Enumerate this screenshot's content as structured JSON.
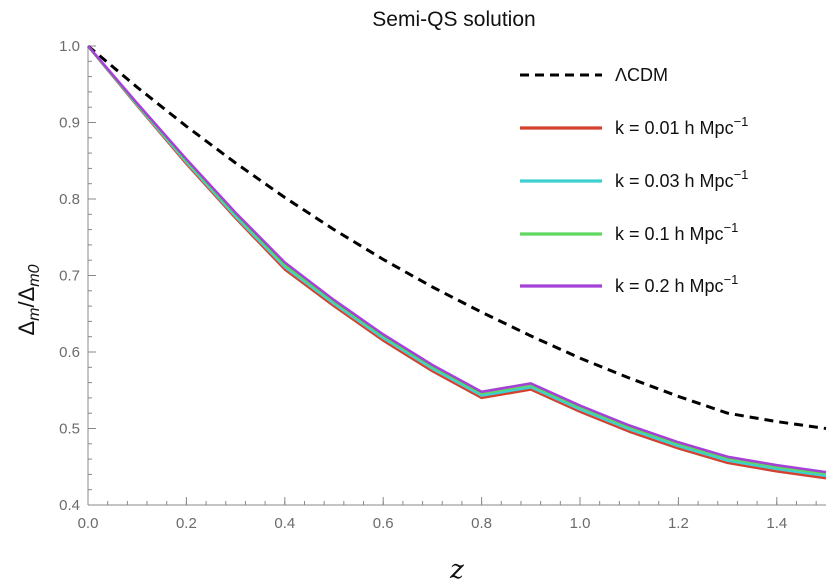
{
  "chart_data": {
    "type": "line",
    "title": "Semi-QS solution",
    "xlabel": "z",
    "ylabel": "Δm/Δm0",
    "ylabel_parts": {
      "main": "Δ",
      "sub1": "m",
      "slash": "/Δ",
      "sub2": "m0"
    },
    "xlim": [
      0.0,
      1.5
    ],
    "ylim": [
      0.4,
      1.0
    ],
    "x_ticks": [
      "0.0",
      "0.2",
      "0.4",
      "0.6",
      "0.8",
      "1.0",
      "1.2",
      "1.4"
    ],
    "y_ticks": [
      "0.4",
      "0.5",
      "0.6",
      "0.7",
      "0.8",
      "0.9",
      "1.0"
    ],
    "grid": false,
    "legend_position": "top-right",
    "x": [
      0.0,
      0.1,
      0.2,
      0.3,
      0.4,
      0.5,
      0.6,
      0.7,
      0.8,
      0.9,
      1.0,
      1.1,
      1.2,
      1.3,
      1.4,
      1.5
    ],
    "series": [
      {
        "name": "ΛCDM",
        "color": "#000000",
        "dash": true,
        "values": [
          1.0,
          0.946,
          0.895,
          0.847,
          0.802,
          0.76,
          0.721,
          0.685,
          0.652,
          0.621,
          0.592,
          0.566,
          0.542,
          0.52,
          0.509,
          0.5
        ]
      },
      {
        "name": "k = 0.01 h Mpc",
        "name_sup": "−1",
        "color": "#d6412f",
        "values": [
          1.0,
          0.922,
          0.846,
          0.775,
          0.708,
          0.66,
          0.615,
          0.575,
          0.54,
          0.551,
          0.522,
          0.496,
          0.474,
          0.455,
          0.444,
          0.435
        ]
      },
      {
        "name": "k = 0.03 h Mpc",
        "name_sup": "−1",
        "color": "#3ecfd0",
        "values": [
          1.0,
          0.923,
          0.848,
          0.777,
          0.711,
          0.663,
          0.618,
          0.578,
          0.543,
          0.554,
          0.525,
          0.499,
          0.477,
          0.458,
          0.447,
          0.438
        ]
      },
      {
        "name": "k = 0.1 h Mpc",
        "name_sup": "−1",
        "color": "#5fd85f",
        "values": [
          1.0,
          0.924,
          0.85,
          0.78,
          0.714,
          0.666,
          0.621,
          0.581,
          0.546,
          0.557,
          0.528,
          0.502,
          0.48,
          0.461,
          0.45,
          0.441
        ]
      },
      {
        "name": "k = 0.2 h Mpc",
        "name_sup": "−1",
        "color": "#a542d6",
        "values": [
          1.0,
          0.925,
          0.852,
          0.782,
          0.717,
          0.668,
          0.623,
          0.583,
          0.548,
          0.559,
          0.53,
          0.504,
          0.482,
          0.463,
          0.452,
          0.443
        ]
      }
    ]
  }
}
